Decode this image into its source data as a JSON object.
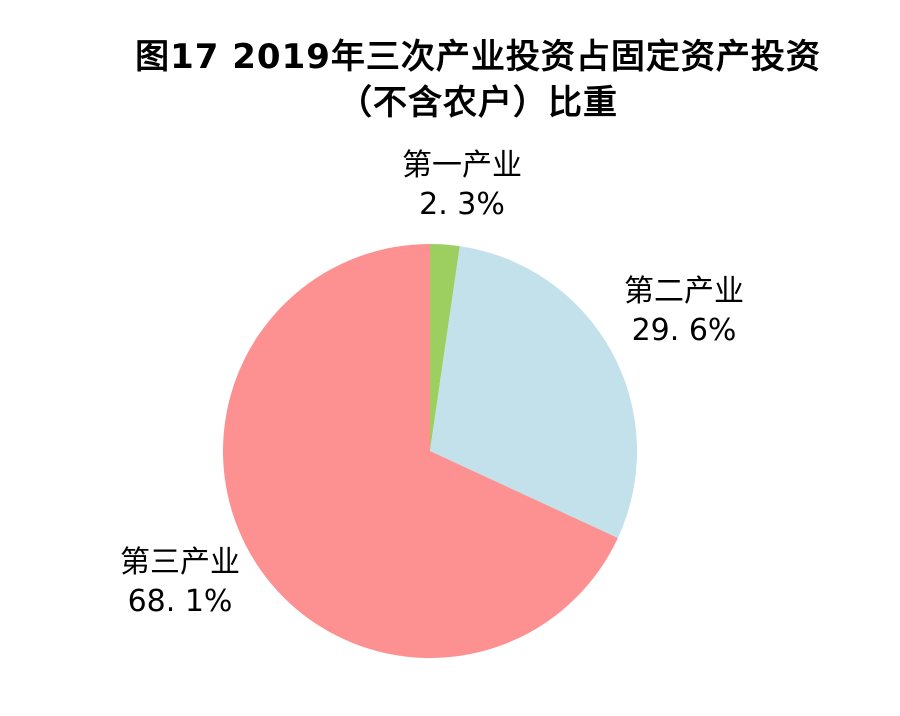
{
  "chart_data": {
    "type": "pie",
    "title": "图17 2019年三次产业投资占固定资产投资（不含农户）比重",
    "title_lines": [
      "图17  2019年三次产业投资占固定资产投资",
      "（不含农户）比重"
    ],
    "unit": "%",
    "start_angle_deg": 0,
    "direction": "clockwise",
    "legend": "none",
    "background_color": "#ffffff",
    "text_color": "#000000",
    "categories": [
      "第一产业",
      "第二产业",
      "第三产业"
    ],
    "values": [
      2.3,
      29.6,
      68.1
    ],
    "slices": [
      {
        "name": "第一产业",
        "value": 2.3,
        "pct_text": "2. 3%",
        "color": "#9DCF60"
      },
      {
        "name": "第二产业",
        "value": 29.6,
        "pct_text": "29. 6%",
        "color": "#C3E1EB"
      },
      {
        "name": "第三产业",
        "value": 68.1,
        "pct_text": "68. 1%",
        "color": "#FD9090"
      }
    ]
  }
}
